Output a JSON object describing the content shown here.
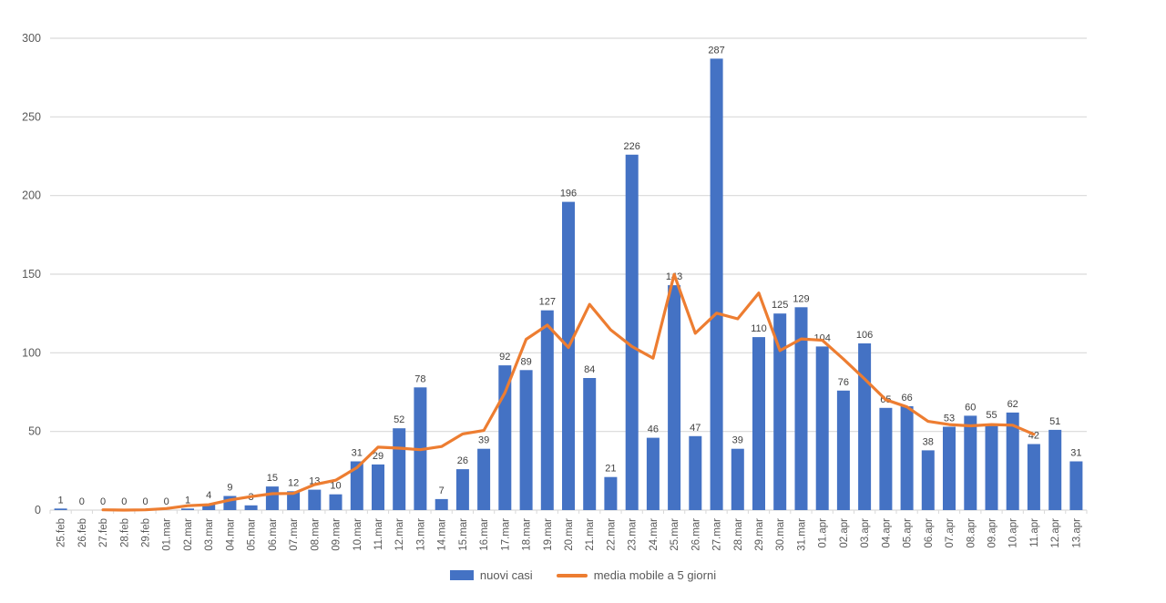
{
  "chart_data": {
    "type": "bar",
    "title": "",
    "xlabel": "",
    "ylabel": "",
    "ylim": [
      0,
      300
    ],
    "yticks": [
      0,
      50,
      100,
      150,
      200,
      250,
      300
    ],
    "grid": true,
    "legend_position": "bottom",
    "categories": [
      "25.feb",
      "26.feb",
      "27.feb",
      "28.feb",
      "29.feb",
      "01.mar",
      "02.mar",
      "03.mar",
      "04.mar",
      "05.mar",
      "06.mar",
      "07.mar",
      "08.mar",
      "09.mar",
      "10.mar",
      "11.mar",
      "12.mar",
      "13.mar",
      "14.mar",
      "15.mar",
      "16.mar",
      "17.mar",
      "18.mar",
      "19.mar",
      "20.mar",
      "21.mar",
      "22.mar",
      "23.mar",
      "24.mar",
      "25.mar",
      "26.mar",
      "27.mar",
      "28.mar",
      "29.mar",
      "30.mar",
      "31.mar",
      "01.apr",
      "02.apr",
      "03.apr",
      "04.apr",
      "05.apr",
      "06.apr",
      "07.apr",
      "08.apr",
      "09.apr",
      "10.apr",
      "11.apr",
      "12.apr",
      "13.apr"
    ],
    "series": [
      {
        "name": "nuovi casi",
        "type": "bar",
        "color": "#4472C4",
        "values": [
          1,
          0,
          0,
          0,
          0,
          0,
          1,
          4,
          9,
          3,
          15,
          12,
          13,
          10,
          31,
          29,
          52,
          78,
          7,
          26,
          39,
          92,
          89,
          127,
          196,
          84,
          21,
          226,
          46,
          143,
          47,
          287,
          39,
          110,
          125,
          129,
          104,
          76,
          106,
          65,
          66,
          38,
          53,
          60,
          55,
          62,
          42,
          51,
          31
        ]
      },
      {
        "name": "media mobile a 5 giorni",
        "type": "line",
        "color": "#ED7D31",
        "values": [
          null,
          null,
          0.2,
          0,
          0.2,
          1,
          2.8,
          3.4,
          6.4,
          8.6,
          10.4,
          10.6,
          16.2,
          19,
          27,
          40,
          39.4,
          38.4,
          40.4,
          48.4,
          50.6,
          74.6,
          108.6,
          117.6,
          103.4,
          130.8,
          114.6,
          104,
          96.6,
          149.8,
          112.4,
          125.2,
          121.6,
          138,
          101.4,
          108.8,
          108,
          96,
          83.4,
          70.2,
          65.6,
          56.4,
          54.4,
          53.6,
          54.4,
          54,
          48.2,
          null,
          null
        ]
      }
    ]
  },
  "legend": {
    "items": [
      {
        "label": "nuovi casi",
        "color": "#4472C4",
        "marker": "rect"
      },
      {
        "label": "media mobile a 5 giorni",
        "color": "#ED7D31",
        "marker": "line"
      }
    ]
  },
  "colors": {
    "background": "#FFFFFF",
    "gridline": "#D9D9D9",
    "axis_line": "#D9D9D9",
    "tick_text": "#595959",
    "data_label_text": "#404040"
  }
}
